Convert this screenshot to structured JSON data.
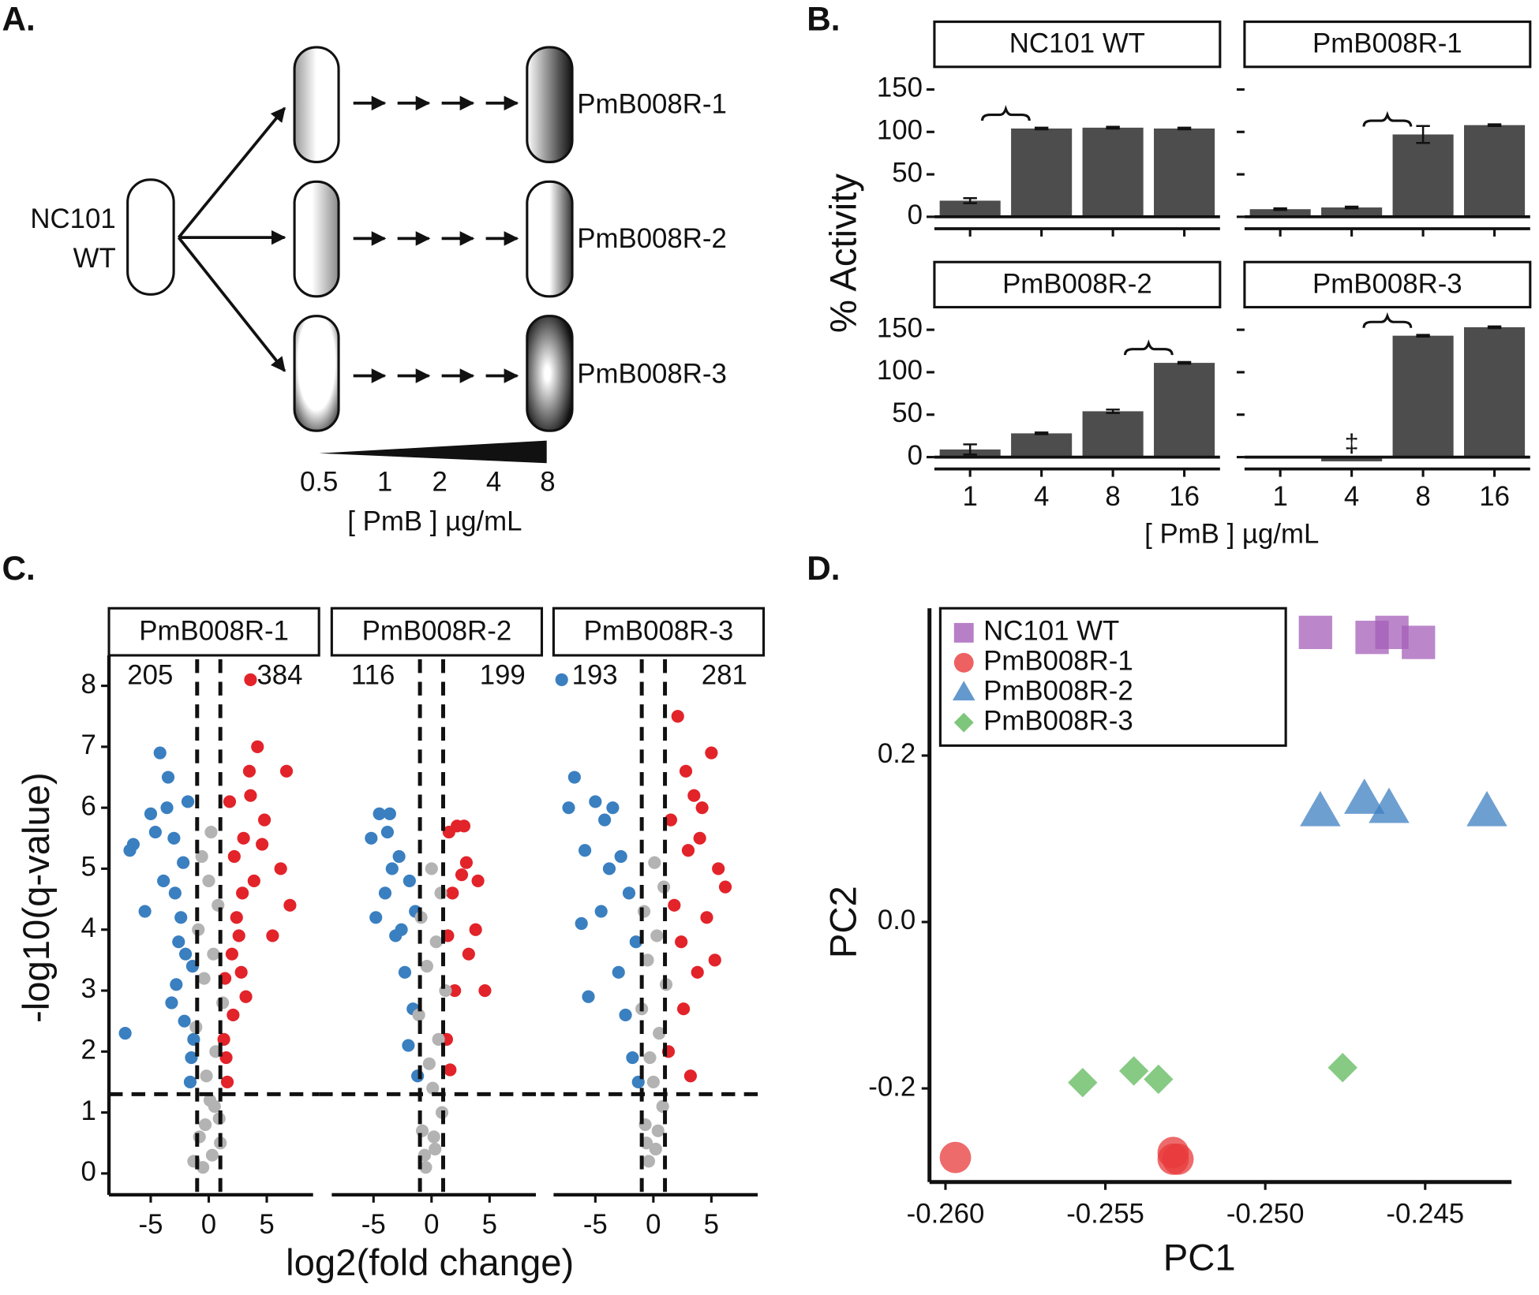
{
  "panel_labels": [
    "A.",
    "B.",
    "C.",
    "D."
  ],
  "diagram": {
    "parent": [
      "NC101",
      "WT"
    ],
    "strains": [
      "PmB008R-1",
      "PmB008R-2",
      "PmB008R-3"
    ],
    "concentrations": [
      0.5,
      1,
      2,
      4,
      8
    ],
    "axis_label": "[ PmB ] µg/mL"
  },
  "chart_data": [
    {
      "type": "bar",
      "ylabel": "% Activity",
      "xlabel": "[ PmB ] µg/mL",
      "ylim": [
        -14,
        172
      ],
      "yticks": [
        0,
        50,
        100,
        150
      ],
      "color": "#4d4d4d",
      "facets": [
        {
          "title": "NC101 WT",
          "categories": [
            "1",
            "4",
            "8",
            "16"
          ],
          "values": [
            19,
            104,
            105,
            104
          ],
          "errors": [
            3,
            1,
            1,
            1
          ]
        },
        {
          "title": "PmB008R-1",
          "categories": [
            "1",
            "4",
            "8",
            "16"
          ],
          "values": [
            9,
            11,
            97,
            108
          ],
          "errors": [
            1,
            1,
            10,
            1
          ]
        },
        {
          "title": "PmB008R-2",
          "categories": [
            "1",
            "4",
            "8",
            "16"
          ],
          "values": [
            9,
            28,
            54,
            111
          ],
          "errors": [
            6,
            1,
            2,
            1
          ]
        },
        {
          "title": "PmB008R-3",
          "categories": [
            "1",
            "4",
            "8",
            "16"
          ],
          "values": [
            0,
            -5,
            143,
            153
          ],
          "errors": [
            0,
            0,
            1,
            1
          ],
          "annotation": "‡"
        }
      ]
    },
    {
      "type": "scatter",
      "xlabel": "log2(fold change)",
      "ylabel": "-log10(q-value)",
      "xlim": [
        -8.6,
        9.5
      ],
      "xticks": [
        -5,
        0,
        5
      ],
      "ylim": [
        -0.35,
        8.5
      ],
      "yticks": [
        0,
        1,
        2,
        3,
        4,
        5,
        6,
        7,
        8
      ],
      "vlines": [
        -1,
        1
      ],
      "hline": 1.3,
      "facets": [
        {
          "title": "PmB008R-1",
          "counts": [
            205,
            384
          ],
          "series": [
            {
              "color": "#3a7fc0",
              "x": [
                -1.5,
                -2.1,
                -2.8,
                -3.5,
                -4.2,
                -5.0,
                -6.8,
                -7.2,
                -2.4,
                -3.0,
                -1.8,
                -2.6,
                -3.9,
                -5.5,
                -1.4,
                -2.2,
                -3.2,
                -4.6,
                -1.6,
                -2.9,
                -6.5,
                -3.6,
                -2.0,
                -1.3
              ],
              "y": [
                1.9,
                2.5,
                3.1,
                6.5,
                6.9,
                5.9,
                5.3,
                2.3,
                4.2,
                5.5,
                6.1,
                3.8,
                4.8,
                4.3,
                3.4,
                5.1,
                2.8,
                5.6,
                1.5,
                4.6,
                5.4,
                6.0,
                3.6,
                2.2
              ]
            },
            {
              "color": "#e2232a",
              "x": [
                1.5,
                2.1,
                2.8,
                3.5,
                4.2,
                4.8,
                6.7,
                7.0,
                2.4,
                3.0,
                1.8,
                2.6,
                3.9,
                5.5,
                1.4,
                2.2,
                3.2,
                4.6,
                1.6,
                2.9,
                6.2,
                3.6,
                2.0,
                1.3,
                3.6
              ],
              "y": [
                1.9,
                2.6,
                3.3,
                6.6,
                7.0,
                5.8,
                6.6,
                4.4,
                4.2,
                5.5,
                6.1,
                3.9,
                4.8,
                3.9,
                3.2,
                5.2,
                2.9,
                5.4,
                1.5,
                4.6,
                5.0,
                6.2,
                3.6,
                2.2,
                8.1
              ]
            },
            {
              "color": "#b3b3b3",
              "x": [
                -0.5,
                0.3,
                -0.8,
                0.9,
                0.1,
                -0.2,
                0.6,
                -1.1,
                1.2,
                -0.4,
                0.4,
                -0.9,
                0.8,
                0,
                -0.6,
                0.2,
                -1.3,
                1.0,
                -0.3,
                0.5
              ],
              "y": [
                0.1,
                0.3,
                0.6,
                0.9,
                1.2,
                1.6,
                2.0,
                2.4,
                2.8,
                3.2,
                3.6,
                4.0,
                4.4,
                4.8,
                5.2,
                5.6,
                0.2,
                0.5,
                0.8,
                1.1
              ]
            }
          ]
        },
        {
          "title": "PmB008R-2",
          "counts": [
            116,
            199
          ],
          "series": [
            {
              "color": "#3a7fc0",
              "x": [
                -5.2,
                -4.5,
                -3.6,
                -2.8,
                -1.9,
                -1.4,
                -3.1,
                -4.0,
                -2.3,
                -1.6,
                -4.8,
                -3.4,
                -2.0,
                -1.2,
                -2.6,
                -3.8
              ],
              "y": [
                5.5,
                5.9,
                5.9,
                5.2,
                4.8,
                4.3,
                3.9,
                4.6,
                3.3,
                2.7,
                4.2,
                5.0,
                2.1,
                1.6,
                4.0,
                5.6
              ]
            },
            {
              "color": "#e2232a",
              "x": [
                1.5,
                2.2,
                3.0,
                3.8,
                4.6,
                1.8,
                2.6,
                1.3,
                3.2,
                2.0,
                4.0,
                1.6,
                2.8,
                1.4
              ],
              "y": [
                5.6,
                5.7,
                5.1,
                4.0,
                3.0,
                4.6,
                4.9,
                2.2,
                3.6,
                3.0,
                4.8,
                1.7,
                5.7,
                3.9
              ]
            },
            {
              "color": "#b3b3b3",
              "x": [
                -0.5,
                0.3,
                -0.8,
                0.9,
                0.1,
                -0.2,
                0.6,
                -1.1,
                1.2,
                -0.4,
                0.4,
                -0.9,
                0.8,
                0,
                -0.6,
                0.2
              ],
              "y": [
                0.1,
                0.4,
                0.7,
                1.0,
                1.4,
                1.8,
                2.2,
                2.6,
                3.0,
                3.4,
                3.8,
                4.2,
                4.6,
                5.0,
                0.3,
                0.6
              ]
            }
          ]
        },
        {
          "title": "PmB008R-3",
          "counts": [
            193,
            281
          ],
          "series": [
            {
              "color": "#3a7fc0",
              "x": [
                -7.9,
                -7.3,
                -6.8,
                -5.9,
                -5.0,
                -4.2,
                -3.5,
                -2.8,
                -2.1,
                -1.5,
                -3.0,
                -4.5,
                -5.6,
                -2.4,
                -1.8,
                -3.8,
                -6.2,
                -1.3
              ],
              "y": [
                8.1,
                6.0,
                6.5,
                5.3,
                6.1,
                5.8,
                6.0,
                5.2,
                4.6,
                3.8,
                3.3,
                4.3,
                2.9,
                2.6,
                1.9,
                5.0,
                4.1,
                1.5
              ]
            },
            {
              "color": "#e2232a",
              "x": [
                2.1,
                2.8,
                3.5,
                4.2,
                5.0,
                5.6,
                6.2,
                1.5,
                1.8,
                2.4,
                3.0,
                3.8,
                4.6,
                1.3,
                2.6,
                4.0,
                5.3,
                3.2
              ],
              "y": [
                7.5,
                6.6,
                6.2,
                6.0,
                6.9,
                5.0,
                4.7,
                5.8,
                4.4,
                3.8,
                5.3,
                3.3,
                4.2,
                2.0,
                2.7,
                5.5,
                3.5,
                1.6
              ]
            },
            {
              "color": "#b3b3b3",
              "x": [
                -0.4,
                0.2,
                -0.7,
                0.8,
                0.0,
                -0.3,
                0.5,
                -1.0,
                1.1,
                -0.5,
                0.3,
                -0.8,
                0.9,
                0.1,
                -0.6,
                0.4
              ],
              "y": [
                0.2,
                0.4,
                0.8,
                1.1,
                1.5,
                1.9,
                2.3,
                2.7,
                3.1,
                3.5,
                3.9,
                4.3,
                4.7,
                5.1,
                0.5,
                0.7
              ]
            }
          ]
        }
      ]
    },
    {
      "type": "scatter",
      "xlabel": "PC1",
      "ylabel": "PC2",
      "xlim": [
        -0.2605,
        -0.2423
      ],
      "ylim": [
        -0.3125,
        0.377
      ],
      "xticks": [
        {
          "value": -0.26,
          "label": "-0.260"
        },
        {
          "value": -0.255,
          "label": "-0.255"
        },
        {
          "value": -0.25,
          "label": "-0.250"
        },
        {
          "value": -0.245,
          "label": "-0.245"
        }
      ],
      "yticks": [
        -0.2,
        {
          "value": 0,
          "label": "0.0"
        },
        0.2
      ],
      "series": [
        {
          "name": "NC101 WT",
          "color": "#a45fb8",
          "marker": "square",
          "x": [
            -0.24843,
            -0.24666,
            -0.24604,
            -0.24521
          ],
          "y": [
            0.348,
            0.342,
            0.348,
            0.336
          ]
        },
        {
          "name": "PmB008R-1",
          "color": "#e8393b",
          "marker": "circle",
          "x": [
            -0.25969,
            -0.25288,
            -0.25273,
            -0.25288
          ],
          "y": [
            -0.283,
            -0.277,
            -0.285,
            -0.285
          ]
        },
        {
          "name": "PmB008R-2",
          "color": "#3d7fc1",
          "marker": "triangle",
          "x": [
            -0.24828,
            -0.2469,
            -0.24613,
            -0.24307
          ],
          "y": [
            0.132,
            0.147,
            0.136,
            0.132
          ]
        },
        {
          "name": "PmB008R-3",
          "color": "#5db85a",
          "marker": "diamond",
          "x": [
            -0.25571,
            -0.25411,
            -0.25334,
            -0.24758
          ],
          "y": [
            -0.193,
            -0.179,
            -0.189,
            -0.175
          ]
        }
      ]
    }
  ]
}
